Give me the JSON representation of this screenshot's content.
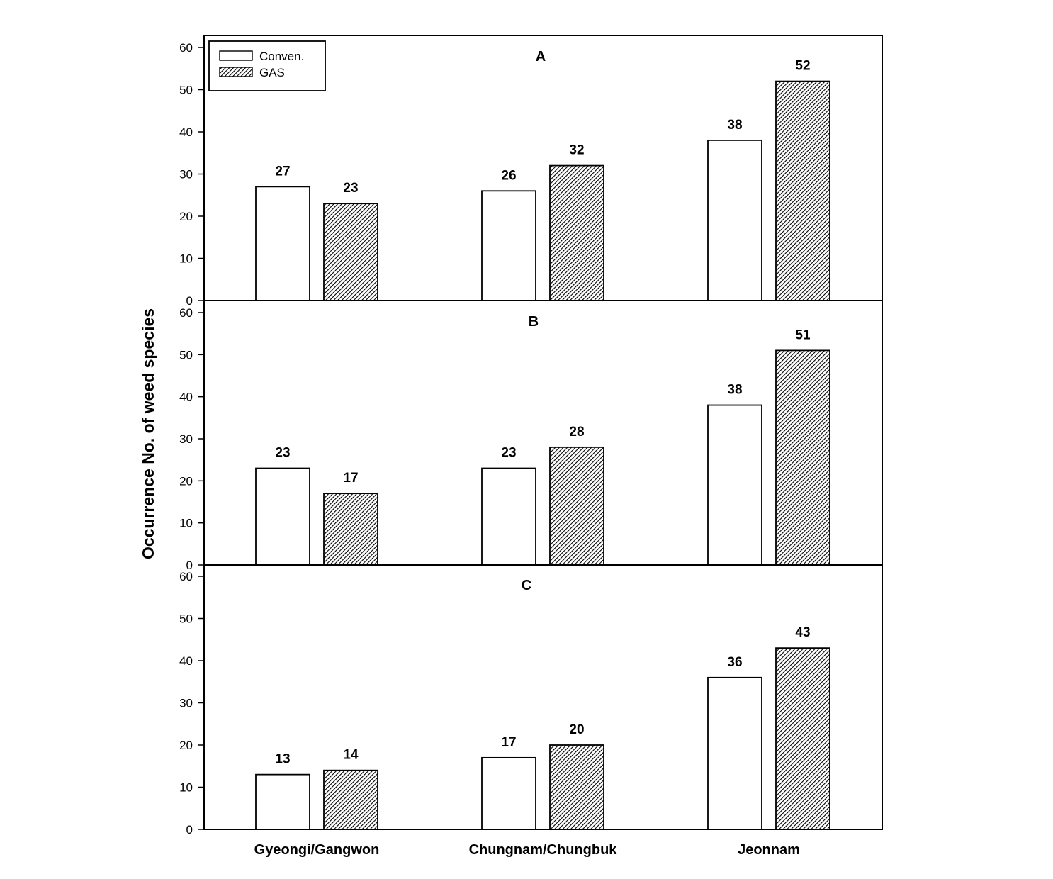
{
  "chart_data": {
    "type": "bar",
    "ylabel": "Occurrence No. of weed species",
    "xlabel": "",
    "ylim": [
      0,
      60
    ],
    "yticks": [
      0,
      10,
      20,
      30,
      40,
      50,
      60
    ],
    "categories": [
      "Gyeongi/Gangwon",
      "Chungnam/Chungbuk",
      "Jeonnam"
    ],
    "legend": {
      "placement": "top-left",
      "entries": [
        {
          "name": "Conven.",
          "style": "white"
        },
        {
          "name": "GAS",
          "style": "hatched"
        }
      ]
    },
    "panels": [
      {
        "label": "A",
        "series": [
          {
            "name": "Conven.",
            "values": [
              27,
              26,
              38
            ]
          },
          {
            "name": "GAS",
            "values": [
              23,
              32,
              52
            ]
          }
        ]
      },
      {
        "label": "B",
        "series": [
          {
            "name": "Conven.",
            "values": [
              23,
              23,
              38
            ]
          },
          {
            "name": "GAS",
            "values": [
              17,
              28,
              51
            ]
          }
        ]
      },
      {
        "label": "C",
        "series": [
          {
            "name": "Conven.",
            "values": [
              13,
              17,
              36
            ]
          },
          {
            "name": "GAS",
            "values": [
              14,
              20,
              43
            ]
          }
        ]
      }
    ]
  }
}
